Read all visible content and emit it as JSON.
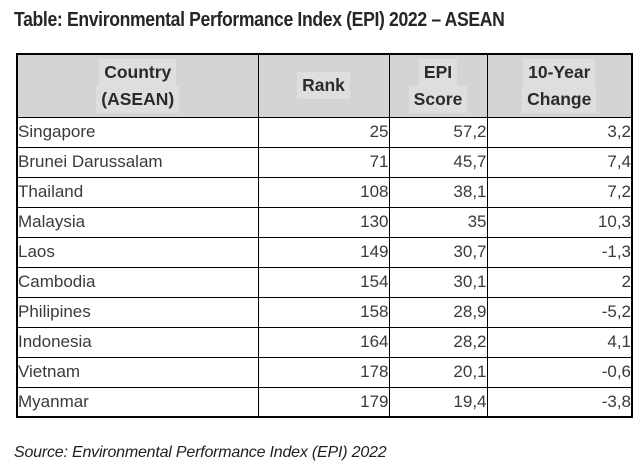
{
  "page": {
    "title": "Table: Environmental Performance Index (EPI) 2022 – ASEAN",
    "source": "Source: Environmental Performance Index (EPI) 2022"
  },
  "chart_data": {
    "type": "table",
    "title": "Table: Environmental Performance Index (EPI) 2022 – ASEAN",
    "source": "Source: Environmental Performance Index (EPI) 2022",
    "columns": [
      "Country (ASEAN)",
      "Rank",
      "EPI Score",
      "10-Year Change"
    ],
    "header": [
      {
        "key": "country",
        "lines": [
          "Country",
          "(ASEAN)"
        ]
      },
      {
        "key": "rank",
        "lines": [
          "Rank"
        ]
      },
      {
        "key": "epi_score",
        "lines": [
          "EPI",
          "Score"
        ]
      },
      {
        "key": "ten_year_change",
        "lines": [
          "10-Year",
          "Change"
        ]
      }
    ],
    "rows": [
      {
        "country": "Singapore",
        "rank": "25",
        "epi_score": "57,2",
        "ten_year_change": "3,2"
      },
      {
        "country": "Brunei Darussalam",
        "rank": "71",
        "epi_score": "45,7",
        "ten_year_change": "7,4"
      },
      {
        "country": "Thailand",
        "rank": "108",
        "epi_score": "38,1",
        "ten_year_change": "7,2"
      },
      {
        "country": "Malaysia",
        "rank": "130",
        "epi_score": "35",
        "ten_year_change": "10,3"
      },
      {
        "country": "Laos",
        "rank": "149",
        "epi_score": "30,7",
        "ten_year_change": "-1,3"
      },
      {
        "country": "Cambodia",
        "rank": "154",
        "epi_score": "30,1",
        "ten_year_change": "2"
      },
      {
        "country": "Philipines",
        "rank": "158",
        "epi_score": "28,9",
        "ten_year_change": "-5,2"
      },
      {
        "country": "Indonesia",
        "rank": "164",
        "epi_score": "28,2",
        "ten_year_change": "4,1"
      },
      {
        "country": "Vietnam",
        "rank": "178",
        "epi_score": "20,1",
        "ten_year_change": "-0,6"
      },
      {
        "country": "Myanmar",
        "rank": "179",
        "epi_score": "19,4",
        "ten_year_change": "-3,8"
      }
    ]
  },
  "colors": {
    "header_bg": "#d4d4d4",
    "header_highlight": "#dedede",
    "border": "#000000",
    "body_text": "#3a3a3a",
    "title_text": "#262626"
  }
}
